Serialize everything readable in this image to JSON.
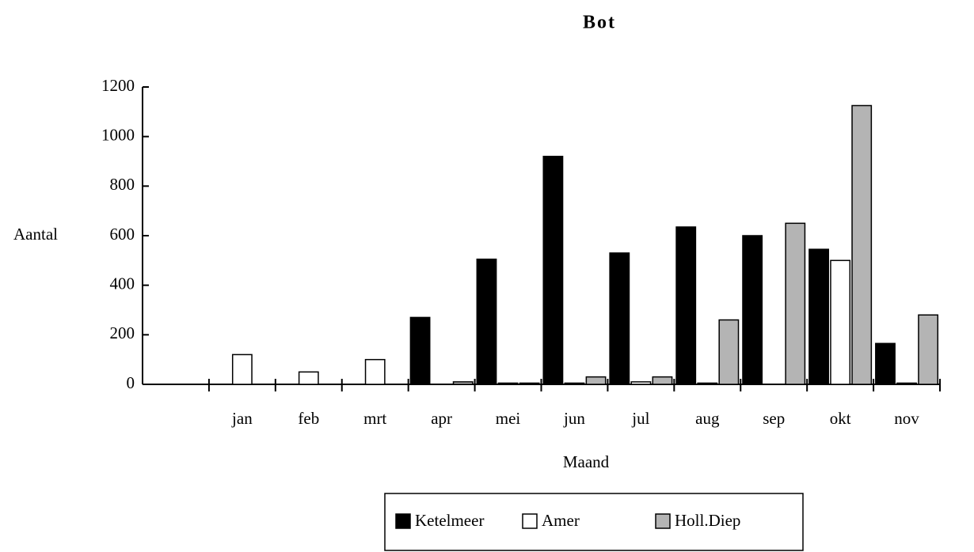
{
  "chart_data": {
    "type": "bar",
    "title": "Bot",
    "x_label": "Maand",
    "y_label": "Aantal",
    "categories": [
      null,
      "jan",
      "feb",
      "mrt",
      "apr",
      "mei",
      "jun",
      "jul",
      "aug",
      "sep",
      "okt",
      "nov"
    ],
    "series": [
      {
        "name": "Ketelmeer",
        "color": "#000000",
        "values": [
          null,
          0,
          0,
          0,
          270,
          505,
          920,
          530,
          635,
          600,
          545,
          165
        ]
      },
      {
        "name": "Amer",
        "color": "#ffffff",
        "values": [
          null,
          120,
          50,
          100,
          0,
          5,
          5,
          10,
          5,
          0,
          500,
          5
        ]
      },
      {
        "name": "Holl.Diep",
        "color": "#b4b4b4",
        "values": [
          null,
          0,
          0,
          0,
          10,
          5,
          30,
          30,
          260,
          650,
          1125,
          280
        ]
      }
    ],
    "ylim": [
      0,
      1200
    ],
    "yticks": [
      0,
      200,
      400,
      600,
      800,
      1000,
      1200
    ],
    "grid": false,
    "legend": "bottom"
  }
}
